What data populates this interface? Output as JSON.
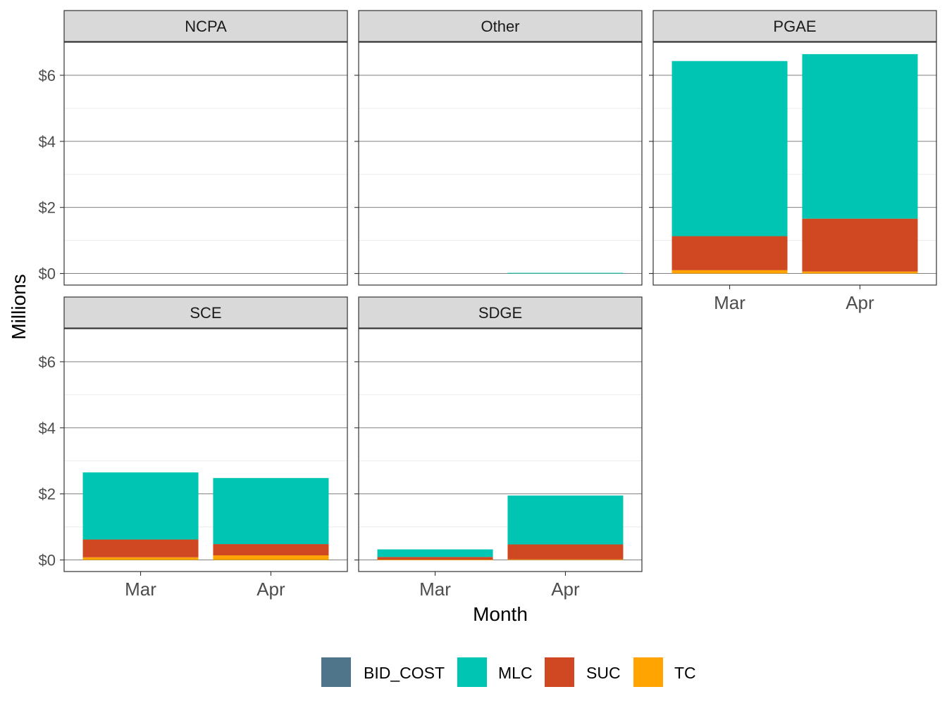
{
  "chart_data": {
    "type": "bar",
    "stacked": true,
    "faceted": true,
    "xlabel": "Month",
    "ylabel": "Millions",
    "ylim": [
      -0.35,
      7.0
    ],
    "yticks": [
      0,
      2,
      4,
      6
    ],
    "ytick_labels": [
      "$0",
      "$2",
      "$4",
      "$6"
    ],
    "categories": [
      "Mar",
      "Apr"
    ],
    "grid": true,
    "legend_position": "bottom",
    "legend": [
      {
        "name": "BID_COST",
        "color": "#4f758b"
      },
      {
        "name": "MLC",
        "color": "#00c5b2"
      },
      {
        "name": "SUC",
        "color": "#d04821"
      },
      {
        "name": "TC",
        "color": "#ffa400"
      }
    ],
    "stack_order": [
      "TC",
      "SUC",
      "MLC",
      "BID_COST"
    ],
    "panels": [
      {
        "label": "NCPA",
        "show_x_axis": false,
        "values": {
          "Mar": {
            "BID_COST": 0,
            "MLC": 0,
            "SUC": 0,
            "TC": 0
          },
          "Apr": {
            "BID_COST": 0,
            "MLC": 0,
            "SUC": 0,
            "TC": 0
          }
        }
      },
      {
        "label": "Other",
        "show_x_axis": false,
        "values": {
          "Mar": {
            "BID_COST": 0,
            "MLC": 0,
            "SUC": 0,
            "TC": 0
          },
          "Apr": {
            "BID_COST": 0,
            "MLC": 0.02,
            "SUC": 0,
            "TC": 0
          }
        }
      },
      {
        "label": "PGAE",
        "show_x_axis": true,
        "values": {
          "Mar": {
            "BID_COST": 0,
            "MLC": 5.3,
            "SUC": 1.03,
            "TC": 0.1
          },
          "Apr": {
            "BID_COST": 0,
            "MLC": 4.98,
            "SUC": 1.6,
            "TC": 0.06
          }
        }
      },
      {
        "label": "SCE",
        "show_x_axis": true,
        "values": {
          "Mar": {
            "BID_COST": 0,
            "MLC": 2.03,
            "SUC": 0.54,
            "TC": 0.08
          },
          "Apr": {
            "BID_COST": 0,
            "MLC": 2.0,
            "SUC": 0.34,
            "TC": 0.14
          }
        }
      },
      {
        "label": "SDGE",
        "show_x_axis": true,
        "values": {
          "Mar": {
            "BID_COST": 0,
            "MLC": 0.23,
            "SUC": 0.08,
            "TC": 0.01
          },
          "Apr": {
            "BID_COST": 0,
            "MLC": 1.48,
            "SUC": 0.45,
            "TC": 0.02
          }
        }
      }
    ]
  }
}
